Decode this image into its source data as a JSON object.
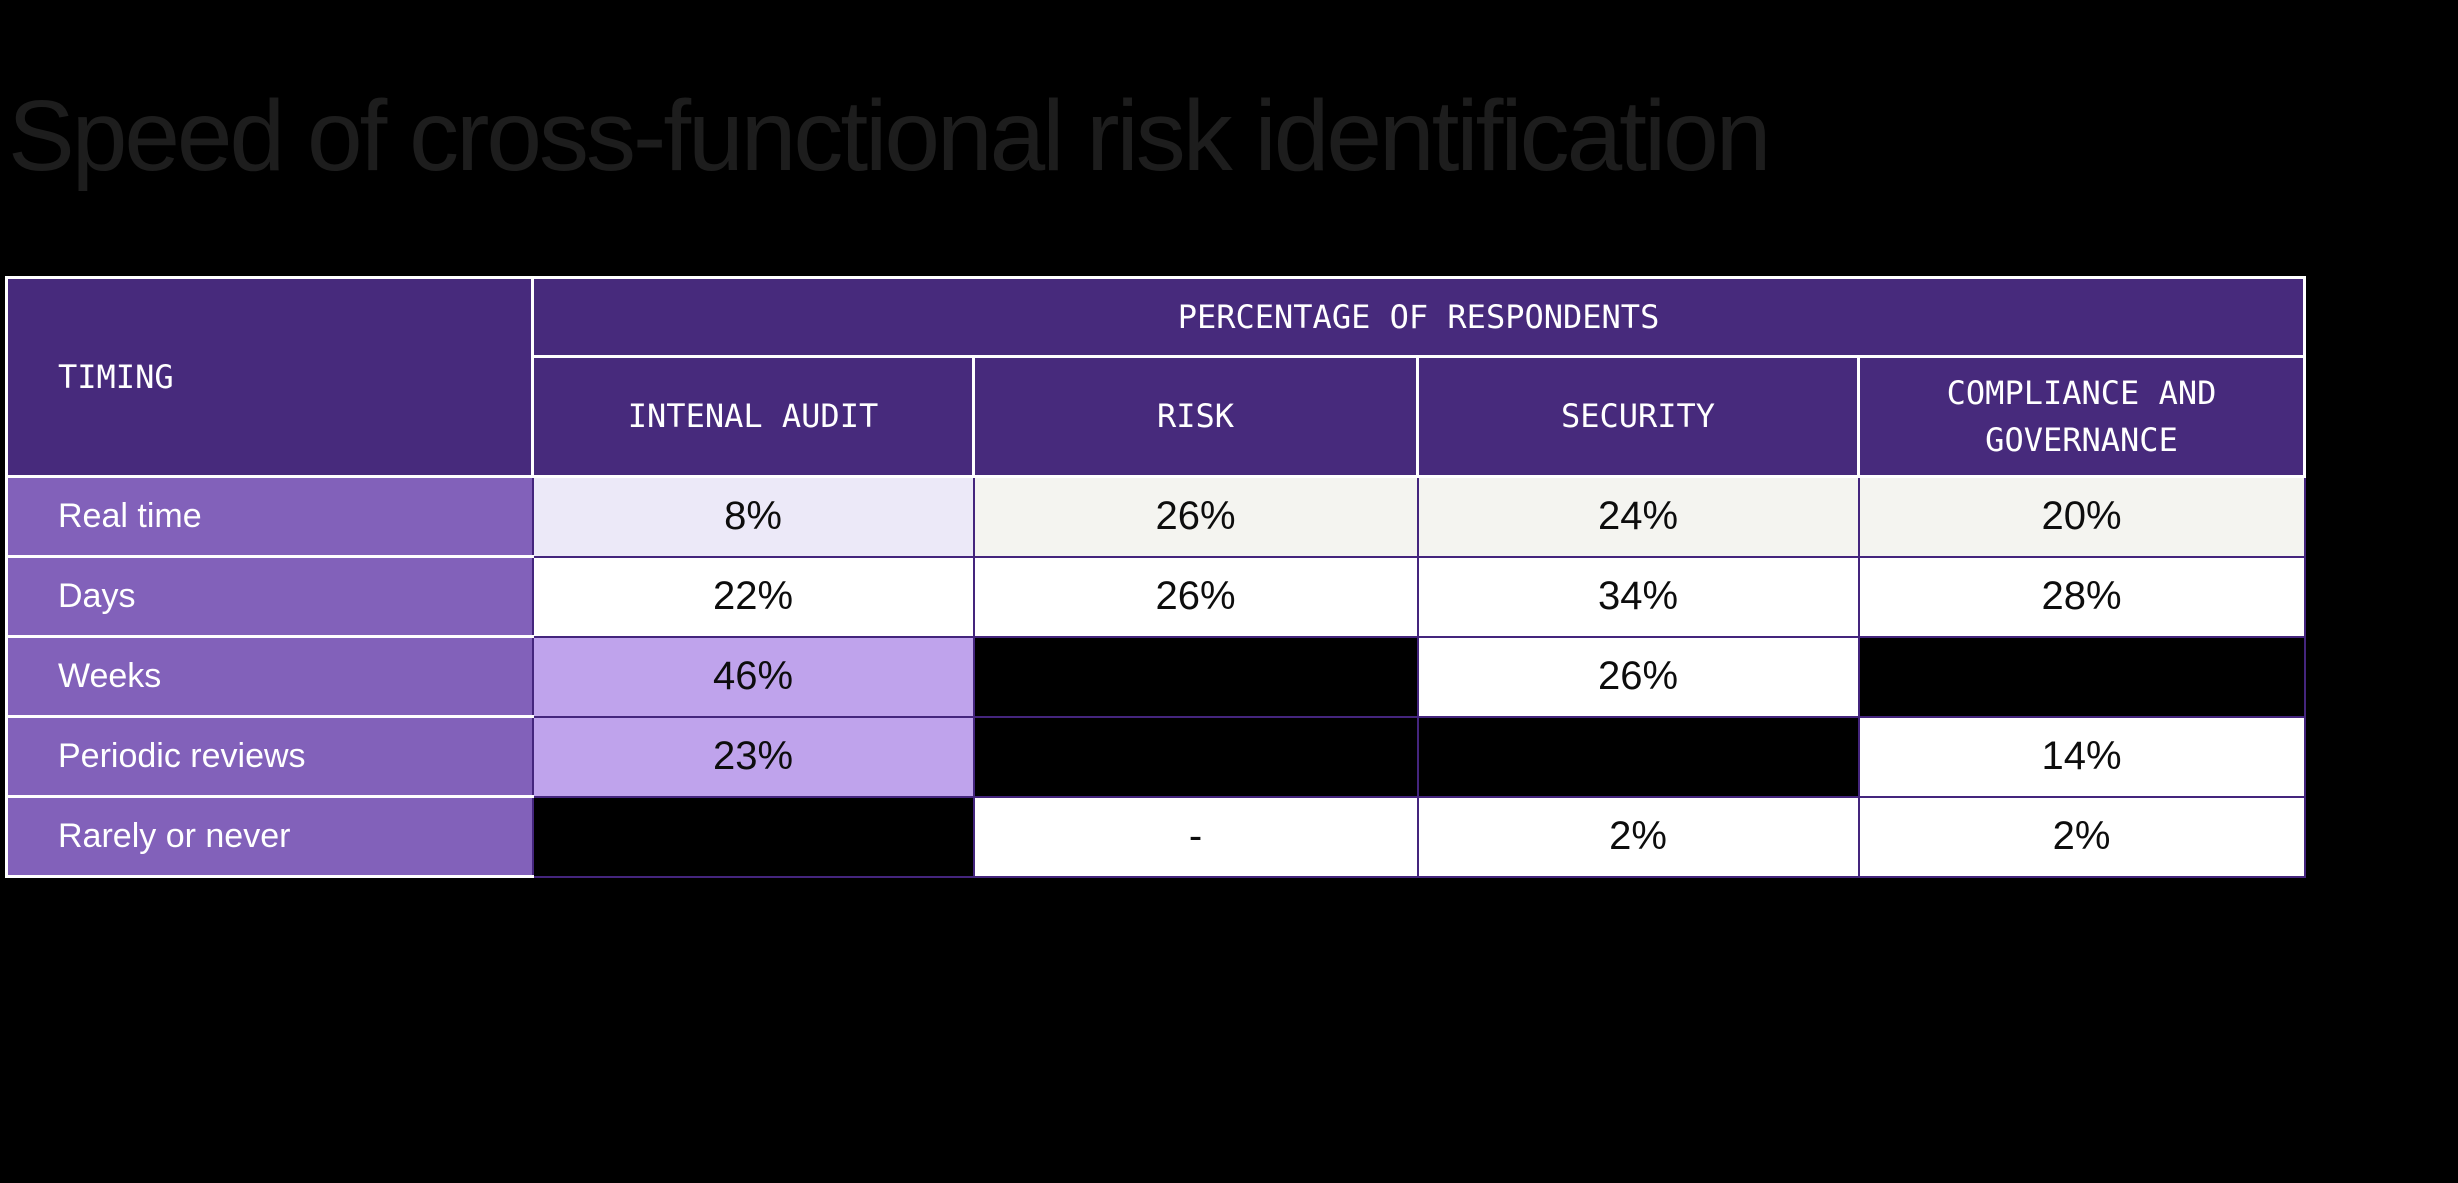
{
  "title": "Speed of cross-functional risk identification",
  "colors": {
    "background": "#000000",
    "title_text": "#1d1d1d",
    "header_purple": "#472a7c",
    "row_label_purple": "#8261ba",
    "grid_line_purple": "#44257d",
    "header_divider_white": "#ffffff",
    "highlight_lavender": "#ece9f8",
    "highlight_offwhite": "#f4f4f0",
    "highlight_light_purple": "#bfa3ec",
    "cell_white": "#ffffff",
    "cell_black": "#000000"
  },
  "table": {
    "corner_header": "TIMING",
    "group_header": "PERCENTAGE OF RESPONDENTS",
    "columns": [
      "INTENAL AUDIT",
      "RISK",
      "SECURITY",
      "COMPLIANCE AND GOVERNANCE"
    ],
    "rows": [
      {
        "label": "Real time",
        "cells": [
          {
            "value": "8%",
            "bg": "#ece9f8"
          },
          {
            "value": "26%",
            "bg": "#f4f4f0"
          },
          {
            "value": "24%",
            "bg": "#f4f4f0"
          },
          {
            "value": "20%",
            "bg": "#f4f4f0"
          }
        ]
      },
      {
        "label": "Days",
        "cells": [
          {
            "value": "22%",
            "bg": "#ffffff"
          },
          {
            "value": "26%",
            "bg": "#ffffff"
          },
          {
            "value": "34%",
            "bg": "#ffffff"
          },
          {
            "value": "28%",
            "bg": "#ffffff"
          }
        ]
      },
      {
        "label": "Weeks",
        "cells": [
          {
            "value": "46%",
            "bg": "#bfa3ec"
          },
          {
            "value": "",
            "bg": "#000000"
          },
          {
            "value": "26%",
            "bg": "#ffffff"
          },
          {
            "value": "",
            "bg": "#000000"
          }
        ]
      },
      {
        "label": "Periodic reviews",
        "cells": [
          {
            "value": "23%",
            "bg": "#bfa3ec"
          },
          {
            "value": "",
            "bg": "#000000"
          },
          {
            "value": "",
            "bg": "#000000"
          },
          {
            "value": "14%",
            "bg": "#ffffff"
          }
        ]
      },
      {
        "label": "Rarely or never",
        "cells": [
          {
            "value": "",
            "bg": "#000000"
          },
          {
            "value": "-",
            "bg": "#ffffff"
          },
          {
            "value": "2%",
            "bg": "#ffffff"
          },
          {
            "value": "2%",
            "bg": "#ffffff"
          }
        ]
      }
    ]
  },
  "chart_data": {
    "type": "table",
    "title": "Speed of cross-functional risk identification",
    "row_header": "TIMING",
    "group_header": "PERCENTAGE OF RESPONDENTS",
    "columns": [
      "INTENAL AUDIT",
      "RISK",
      "SECURITY",
      "COMPLIANCE AND GOVERNANCE"
    ],
    "rows": [
      "Real time",
      "Days",
      "Weeks",
      "Periodic reviews",
      "Rarely or never"
    ],
    "values_pct": [
      [
        8,
        26,
        24,
        20
      ],
      [
        22,
        26,
        34,
        28
      ],
      [
        46,
        null,
        26,
        null
      ],
      [
        23,
        null,
        null,
        14
      ],
      [
        null,
        null,
        2,
        2
      ]
    ],
    "notes": "null = blank black cell; Rarely or never / RISK displays a dash"
  }
}
